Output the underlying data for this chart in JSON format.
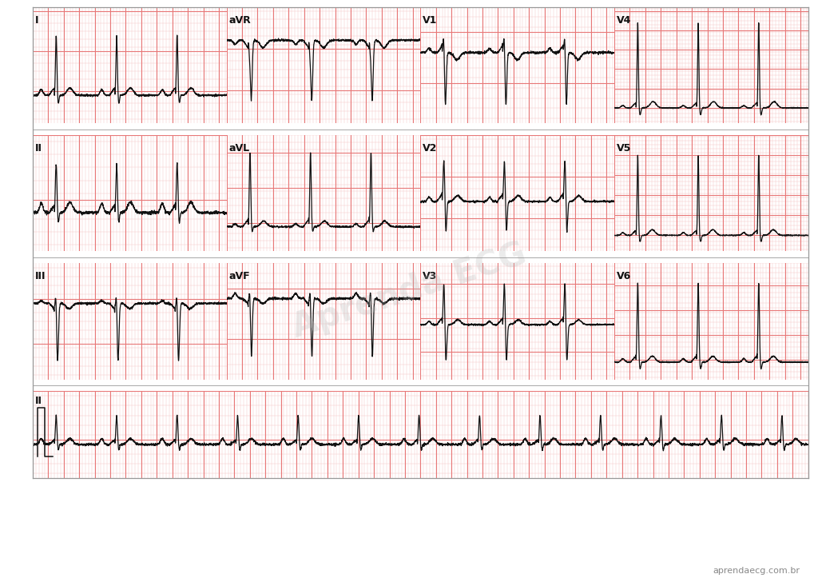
{
  "bg_color": "#ffffff",
  "grid_major_color": "#e87878",
  "grid_minor_color": "#f5c8c8",
  "ecg_color": "#111111",
  "lead_label_color": "#111111",
  "watermark_text": "Aprenda ECG",
  "website_text": "aprendaecg.com.br",
  "border_color": "#999999",
  "row1_leads": [
    "I",
    "aVR",
    "V1",
    "V4"
  ],
  "row2_leads": [
    "II",
    "aVL",
    "V2",
    "V5"
  ],
  "row3_leads": [
    "III",
    "aVF",
    "V3",
    "V6"
  ],
  "rhythm_lead": "II",
  "fs": 500,
  "rr_interval": 0.78,
  "strip_duration": 2.5,
  "rhythm_duration": 10.0
}
